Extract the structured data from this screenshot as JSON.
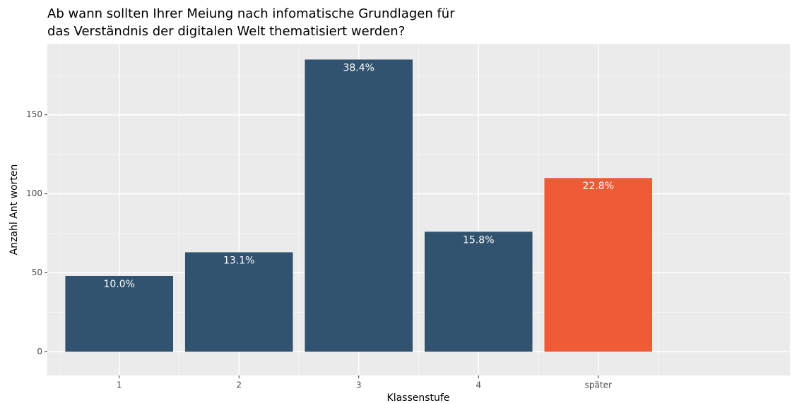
{
  "chart_data": {
    "type": "bar",
    "title": [
      "Ab wann sollten Ihrer Meiung nach infomatische Grundlagen für",
      "das Verständnis der digitalen Welt thematisiert werden?"
    ],
    "x_label": "Klassenstufe",
    "y_label": "Anzahl Ant worten",
    "categories": [
      "1",
      "2",
      "3",
      "4",
      "später"
    ],
    "values": [
      48,
      63,
      185,
      76,
      110
    ],
    "value_labels": [
      "10.0%",
      "13.1%",
      "38.4%",
      "15.8%",
      "22.8%"
    ],
    "colors": [
      "#32536f",
      "#32536f",
      "#32536f",
      "#32536f",
      "#ef5b37"
    ],
    "ylim": [
      -15,
      195
    ],
    "yticks": [
      0,
      50,
      100,
      150
    ],
    "yminorticks": [
      25,
      75,
      125,
      175
    ],
    "grid": true
  }
}
